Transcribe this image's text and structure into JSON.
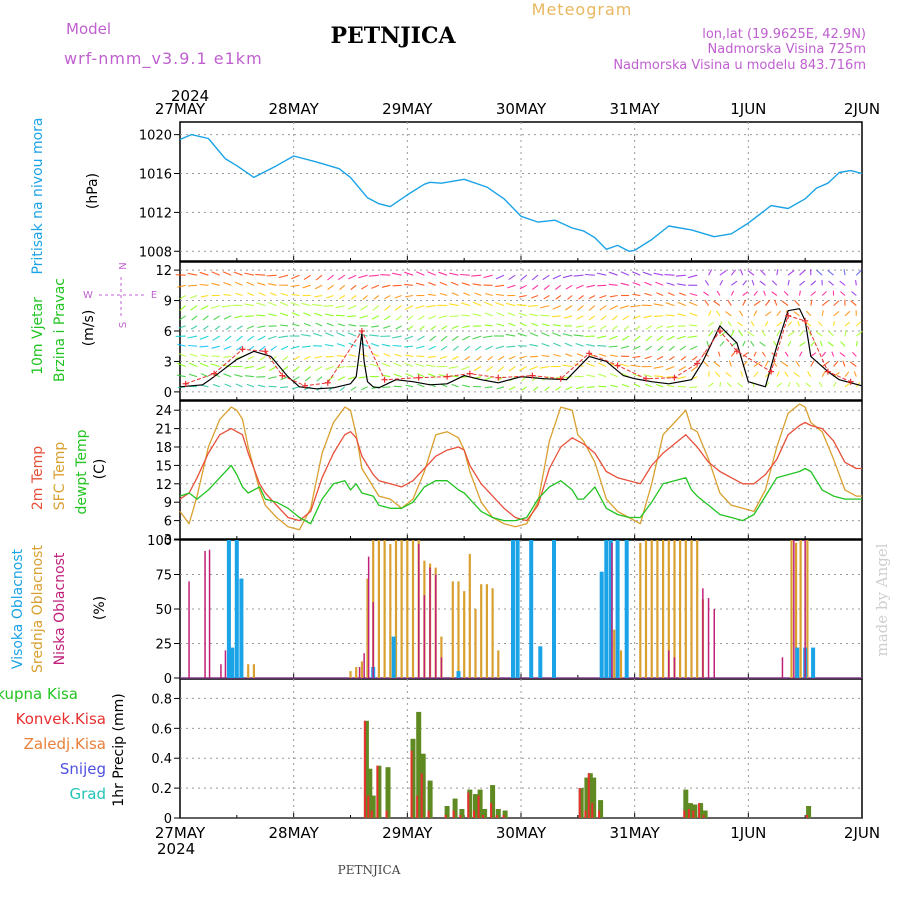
{
  "header": {
    "model_label": "Model",
    "model_name": "wrf-nmm_v3.9.1  e1km",
    "station": "PETNJICA",
    "meteogram": "Meteogram",
    "lonlat": "lon,lat (19.9625E, 42.9N)",
    "elevation": "Nadmorska Visina 725m",
    "model_elevation": "Nadmorska Visina u modelu 843.716m",
    "footer_station": "PETNJICA",
    "credit": "made by Angel"
  },
  "time_axis": {
    "year": "2024",
    "labels": [
      "27MAY",
      "28MAY",
      "29MAY",
      "30MAY",
      "31MAY",
      "1JUN",
      "2JUN"
    ]
  },
  "colors": {
    "pressure": "#1aa3e6",
    "wind_speed": "#000000",
    "gust": "#e83030",
    "t2m": "#e8503a",
    "tsfc": "#d9a030",
    "dewpt": "#22c422",
    "high_cloud": "#1aa3e6",
    "mid_cloud": "#d9a030",
    "low_cloud": "#c0207a",
    "total_precip": "#5f8a22",
    "conv_precip": "#e83030",
    "frozen": "#e8803a",
    "snow": "#5050e0",
    "hail": "#22c4b4",
    "purple_text": "#c060d0"
  },
  "chart_data": [
    {
      "type": "line",
      "name": "pressure_panel",
      "ylabel_lines": [
        "Pritisak na nivou mora",
        "(hPa)"
      ],
      "yticks": [
        "1008",
        "1012",
        "1016",
        "1020"
      ],
      "ylim": [
        1007,
        1021.3
      ],
      "x_days": [
        0,
        0.1,
        0.25,
        0.4,
        0.5,
        0.65,
        0.85,
        1.0,
        1.2,
        1.4,
        1.5,
        1.65,
        1.75,
        1.85,
        2.0,
        2.15,
        2.2,
        2.3,
        2.5,
        2.7,
        2.85,
        3.0,
        3.15,
        3.3,
        3.45,
        3.55,
        3.65,
        3.75,
        3.85,
        3.95,
        4.0,
        4.15,
        4.3,
        4.5,
        4.7,
        4.85,
        5.0,
        5.2,
        5.35,
        5.5,
        5.6,
        5.7,
        5.8,
        5.9,
        6.0
      ],
      "pressure": [
        1019.5,
        1020.0,
        1019.6,
        1017.5,
        1016.8,
        1015.6,
        1016.8,
        1017.8,
        1017.2,
        1016.5,
        1015.6,
        1013.5,
        1012.9,
        1012.6,
        1013.8,
        1014.9,
        1015.1,
        1015.0,
        1015.4,
        1014.6,
        1013.4,
        1011.6,
        1011.0,
        1011.2,
        1010.4,
        1010.1,
        1009.4,
        1008.2,
        1008.6,
        1008.0,
        1008.1,
        1009.2,
        1010.6,
        1010.2,
        1009.5,
        1009.8,
        1010.9,
        1012.7,
        1012.4,
        1013.4,
        1014.5,
        1015.0,
        1016.1,
        1016.3,
        1016.0
      ]
    },
    {
      "type": "line",
      "name": "wind_panel",
      "ylabel_lines": [
        "10m Vjetar",
        "Brzina i Pravac",
        "(m/s)"
      ],
      "compass": [
        "N",
        "W",
        "E",
        "S"
      ],
      "yticks": [
        "0",
        "3",
        "6",
        "9",
        "12"
      ],
      "ylim": [
        -0.8,
        12.8
      ],
      "x_days": [
        0,
        0.2,
        0.3,
        0.5,
        0.65,
        0.8,
        0.95,
        1.05,
        1.2,
        1.35,
        1.5,
        1.55,
        1.6,
        1.62,
        1.65,
        1.7,
        1.75,
        1.9,
        2.05,
        2.2,
        2.35,
        2.5,
        2.65,
        2.8,
        3.0,
        3.2,
        3.4,
        3.6,
        3.75,
        3.9,
        4.0,
        4.15,
        4.3,
        4.5,
        4.6,
        4.75,
        4.9,
        5.0,
        5.15,
        5.25,
        5.35,
        5.45,
        5.5,
        5.55,
        5.7,
        5.8,
        6.0
      ],
      "speed": [
        0.5,
        0.7,
        1.5,
        3.2,
        4.0,
        3.5,
        1.5,
        0.5,
        0.3,
        0.4,
        0.8,
        1.5,
        5.8,
        3.0,
        1.0,
        0.5,
        0.4,
        1.2,
        1.0,
        0.7,
        0.8,
        1.6,
        1.2,
        0.9,
        1.5,
        1.3,
        1.2,
        3.5,
        3.0,
        1.6,
        1.3,
        1.0,
        0.8,
        1.2,
        3.0,
        6.5,
        4.8,
        1.0,
        0.5,
        4.5,
        8.0,
        8.2,
        7.0,
        3.5,
        2.0,
        1.2,
        0.6
      ],
      "gust_x_days": [
        0.05,
        0.3,
        0.55,
        0.75,
        0.9,
        1.1,
        1.3,
        1.6,
        1.8,
        2.1,
        2.35,
        2.55,
        2.8,
        3.1,
        3.35,
        3.6,
        3.85,
        4.1,
        4.35,
        4.55,
        4.75,
        4.9,
        5.2,
        5.35,
        5.5,
        5.7,
        5.9
      ],
      "gust": [
        0.8,
        1.8,
        4.2,
        4.0,
        1.6,
        0.6,
        0.9,
        6.0,
        1.2,
        1.4,
        1.5,
        1.8,
        1.4,
        1.6,
        1.3,
        3.8,
        2.6,
        1.3,
        1.4,
        2.8,
        6.0,
        4.0,
        2.0,
        7.5,
        7.0,
        2.0,
        1.0
      ]
    },
    {
      "type": "line",
      "name": "temperature_panel",
      "ylabel_lines": [
        "2m Temp",
        "SFC Temp",
        "dewpt Temp",
        "(C)"
      ],
      "yticks": [
        "3",
        "6",
        "9",
        "12",
        "15",
        "18",
        "21",
        "24"
      ],
      "ylim": [
        3,
        25.5
      ],
      "x_days": [
        0,
        0.08,
        0.15,
        0.25,
        0.35,
        0.45,
        0.5,
        0.55,
        0.6,
        0.7,
        0.75,
        0.85,
        0.95,
        1.05,
        1.15,
        1.25,
        1.35,
        1.45,
        1.5,
        1.55,
        1.6,
        1.7,
        1.75,
        1.85,
        1.95,
        2.05,
        2.15,
        2.25,
        2.35,
        2.45,
        2.5,
        2.55,
        2.65,
        2.75,
        2.85,
        2.95,
        3.05,
        3.15,
        3.25,
        3.35,
        3.45,
        3.5,
        3.55,
        3.65,
        3.75,
        3.85,
        3.95,
        4.05,
        4.15,
        4.25,
        4.35,
        4.45,
        4.5,
        4.55,
        4.65,
        4.75,
        4.85,
        4.95,
        5.05,
        5.15,
        5.25,
        5.35,
        5.45,
        5.5,
        5.55,
        5.65,
        5.75,
        5.85,
        5.95,
        6.0
      ],
      "t2m": [
        9.5,
        10.5,
        13.0,
        17.0,
        20.0,
        21.0,
        20.5,
        20.0,
        17.0,
        12.0,
        10.5,
        8.5,
        6.5,
        6.0,
        7.5,
        13.0,
        17.0,
        20.0,
        20.5,
        19.5,
        16.5,
        13.5,
        12.5,
        12.0,
        11.5,
        12.5,
        14.5,
        16.5,
        17.5,
        18.0,
        17.5,
        15.0,
        12.0,
        10.0,
        8.0,
        6.5,
        6.0,
        8.5,
        14.5,
        18.0,
        19.5,
        19.0,
        18.5,
        17.0,
        14.0,
        13.0,
        12.5,
        12.0,
        15.0,
        17.0,
        18.5,
        20.0,
        19.0,
        18.0,
        15.5,
        14.0,
        13.0,
        12.0,
        12.0,
        13.5,
        16.0,
        20.0,
        21.5,
        22.0,
        21.5,
        21.0,
        19.0,
        15.5,
        14.5,
        14.5
      ],
      "tsfc": [
        7.5,
        5.5,
        10.0,
        18.0,
        22.5,
        24.5,
        24.0,
        22.5,
        18.0,
        11.0,
        8.5,
        6.5,
        5.0,
        4.5,
        8.0,
        17.0,
        22.0,
        24.5,
        24.0,
        20.0,
        14.5,
        11.5,
        10.0,
        9.5,
        8.0,
        9.5,
        14.0,
        20.0,
        20.5,
        19.5,
        17.5,
        14.0,
        9.0,
        6.5,
        5.5,
        5.0,
        5.5,
        9.0,
        19.0,
        24.5,
        24.0,
        20.0,
        19.0,
        15.5,
        9.5,
        7.5,
        6.5,
        5.5,
        12.0,
        20.0,
        22.0,
        24.0,
        21.0,
        20.5,
        16.0,
        10.5,
        8.5,
        8.0,
        7.5,
        11.0,
        18.0,
        23.5,
        25.0,
        24.5,
        22.0,
        20.5,
        16.0,
        11.0,
        10.0,
        10.0
      ],
      "dewpt": [
        10.0,
        10.5,
        9.5,
        11.0,
        13.0,
        15.0,
        13.5,
        11.5,
        10.5,
        11.5,
        9.5,
        9.0,
        8.0,
        6.5,
        5.5,
        9.5,
        12.0,
        12.5,
        11.0,
        12.0,
        10.5,
        10.0,
        8.5,
        8.0,
        8.0,
        9.0,
        11.5,
        12.5,
        12.5,
        11.0,
        10.5,
        9.5,
        7.5,
        6.5,
        6.0,
        6.0,
        6.5,
        9.5,
        11.5,
        12.5,
        11.0,
        9.5,
        9.5,
        11.5,
        8.0,
        7.0,
        6.5,
        6.5,
        9.0,
        12.0,
        12.5,
        13.0,
        11.0,
        10.0,
        8.5,
        7.0,
        6.5,
        6.0,
        7.0,
        10.0,
        13.0,
        13.5,
        14.0,
        14.5,
        14.0,
        11.0,
        10.0,
        9.5,
        9.5,
        9.5
      ]
    },
    {
      "type": "bar",
      "name": "cloud_panel",
      "ylabel_lines": [
        "Visoka Oblacnost",
        "Srednja Oblacnost",
        "Niska Oblacnost",
        "(%)"
      ],
      "yticks": [
        "0",
        "25",
        "50",
        "75",
        "100"
      ],
      "ylim": [
        0,
        100
      ],
      "series": [
        {
          "key": "high",
          "x_days": [
            0.43,
            0.46,
            0.5,
            0.54,
            1.7,
            1.88,
            2.45,
            2.93,
            2.97,
            3.09,
            3.17,
            3.29,
            3.71,
            3.75,
            3.79,
            3.85,
            3.93,
            5.43,
            5.5,
            5.57
          ],
          "values": [
            100,
            22,
            100,
            72,
            8,
            30,
            5,
            100,
            100,
            100,
            23,
            100,
            77,
            100,
            100,
            100,
            100,
            22,
            22,
            22
          ]
        },
        {
          "key": "mid",
          "x_days": [
            0.6,
            0.65,
            1.5,
            1.55,
            1.6,
            1.65,
            1.7,
            1.75,
            1.8,
            1.85,
            1.9,
            1.95,
            2.0,
            2.05,
            2.1,
            2.15,
            2.2,
            2.25,
            2.3,
            2.4,
            2.45,
            2.5,
            2.55,
            2.6,
            2.65,
            2.7,
            2.75,
            2.8,
            3.82,
            3.88,
            4.05,
            4.1,
            4.15,
            4.2,
            4.25,
            4.3,
            4.35,
            4.4,
            4.45,
            4.5,
            4.55,
            4.6,
            5.38,
            5.42,
            5.46,
            5.52
          ],
          "values": [
            10,
            10,
            5,
            8,
            12,
            72,
            100,
            100,
            100,
            97,
            100,
            100,
            100,
            100,
            100,
            85,
            83,
            80,
            30,
            70,
            70,
            63,
            90,
            50,
            68,
            68,
            65,
            20,
            35,
            20,
            98,
            100,
            100,
            100,
            100,
            100,
            100,
            100,
            100,
            100,
            100,
            57,
            100,
            98,
            100,
            100
          ]
        },
        {
          "key": "low",
          "x_days": [
            0.08,
            0.22,
            0.26,
            0.36,
            0.4,
            1.58,
            1.62,
            1.66,
            1.7,
            2.1,
            2.15,
            2.2,
            2.25,
            2.3,
            3.8,
            4.3,
            4.35,
            4.6,
            4.65,
            4.7,
            5.3,
            5.4,
            5.5
          ],
          "values": [
            70,
            92,
            93,
            10,
            20,
            8,
            18,
            88,
            55,
            97,
            60,
            80,
            75,
            15,
            98,
            20,
            15,
            65,
            58,
            50,
            15,
            100,
            100
          ]
        }
      ]
    },
    {
      "type": "bar",
      "name": "precip_panel",
      "ylabel": "1hr Precip (mm)",
      "legend": [
        "Ukupna Kisa",
        "Konvek.Kisa",
        "Zaledj.Kisa",
        "Snijeg",
        "Grad"
      ],
      "yticks": [
        "0",
        "0.2",
        "0.4",
        "0.6",
        "0.8"
      ],
      "ylim": [
        0,
        0.93
      ],
      "x_days": [
        1.64,
        1.67,
        1.7,
        1.75,
        1.83,
        2.05,
        2.1,
        2.14,
        2.2,
        2.35,
        2.42,
        2.48,
        2.55,
        2.6,
        2.64,
        2.68,
        2.75,
        2.8,
        2.86,
        3.53,
        3.58,
        3.61,
        3.64,
        3.7,
        4.45,
        4.49,
        4.53,
        4.58,
        4.62,
        5.53
      ],
      "total": [
        0.65,
        0.33,
        0.15,
        0.35,
        0.34,
        0.53,
        0.71,
        0.43,
        0.25,
        0.08,
        0.13,
        0.06,
        0.19,
        0.16,
        0.19,
        0.06,
        0.22,
        0.06,
        0.05,
        0.2,
        0.27,
        0.3,
        0.27,
        0.12,
        0.19,
        0.1,
        0.09,
        0.1,
        0.05,
        0.08
      ],
      "convective": [
        0.65,
        0.15,
        0.05,
        0.35,
        0.05,
        0.45,
        0.15,
        0.3,
        0.05,
        0.02,
        0.05,
        0.02,
        0.17,
        0.05,
        0.15,
        0.02,
        0.1,
        0.02,
        0.02,
        0.2,
        0.05,
        0.3,
        0.1,
        0.05,
        0.05,
        0.06,
        0.05,
        0.1,
        0.02,
        0.02
      ]
    }
  ]
}
